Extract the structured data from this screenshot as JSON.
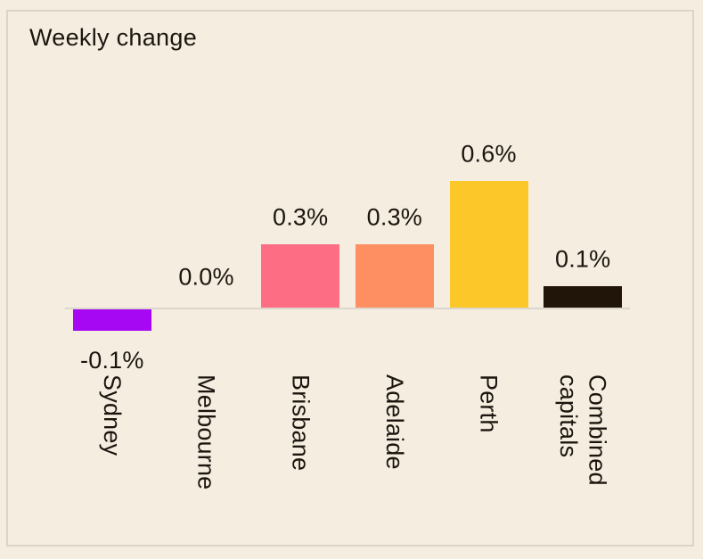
{
  "title": "Weekly change",
  "palette": {
    "background": "#f5ede0",
    "card_border": "#dcd5c7",
    "axis_line": "#dcd7cc",
    "text": "#1a150e"
  },
  "chart_data": {
    "type": "bar",
    "title": "Weekly change",
    "categories": [
      "Sydney",
      "Melbourne",
      "Brisbane",
      "Adelaide",
      "Perth",
      "Combined capitals"
    ],
    "values": [
      -0.1,
      0.0,
      0.3,
      0.3,
      0.6,
      0.1
    ],
    "value_labels": [
      "-0.1%",
      "0.0%",
      "0.3%",
      "0.3%",
      "0.6%",
      "0.1%"
    ],
    "bar_colors": [
      "#a708f3",
      null,
      "#fd6e84",
      "#fd8f63",
      "#fcc729",
      "#211409"
    ],
    "unit": "%",
    "xlabel": "",
    "ylabel": "",
    "ylim": [
      -0.2,
      0.8
    ],
    "grid": false,
    "legend": false,
    "baseline": 0,
    "category_label_rotation": "vertical"
  }
}
